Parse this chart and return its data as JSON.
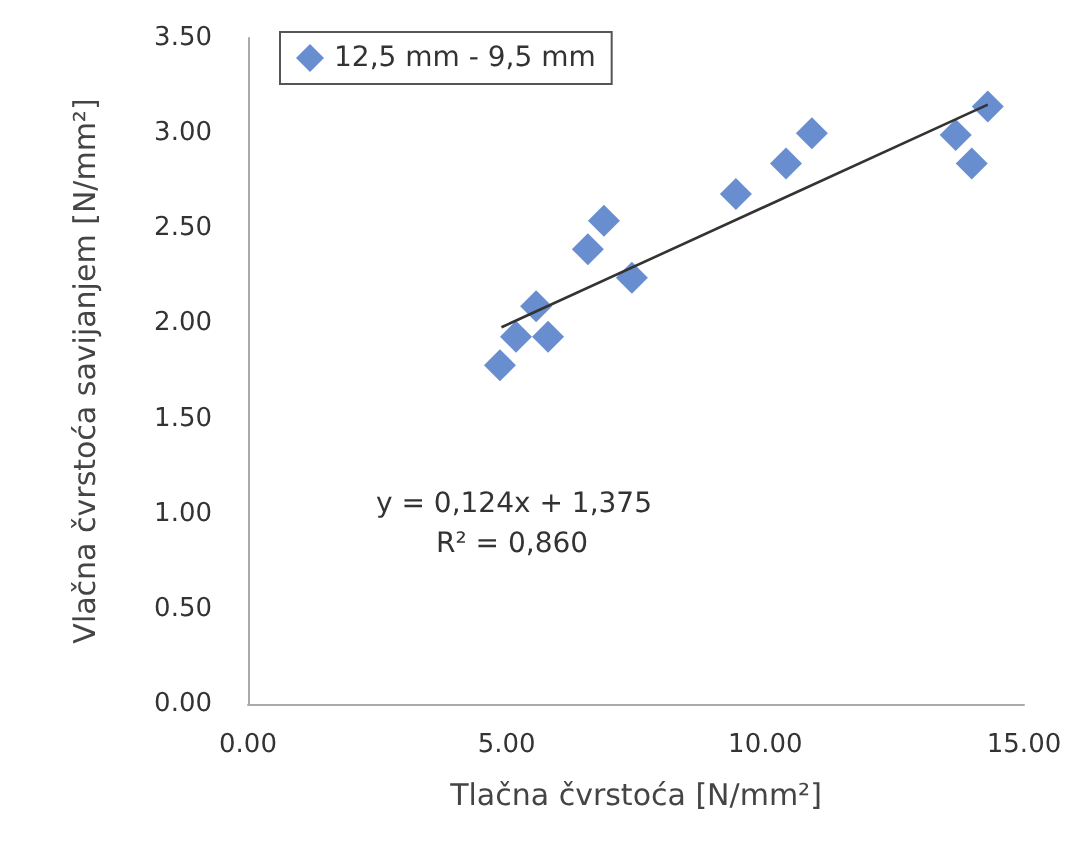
{
  "chart_data": {
    "type": "scatter",
    "xlabel": "Tlačna čvrstoća [N/mm²]",
    "ylabel": "Vlačna čvrstoća savijanjem [N/mm²]",
    "series": [
      {
        "name": "12,5 mm - 9,5 mm",
        "color": "#4472c4",
        "marker": "diamond",
        "x": [
          4.87,
          5.18,
          5.57,
          5.8,
          6.57,
          6.88,
          7.42,
          9.43,
          10.4,
          10.9,
          13.68,
          13.99,
          14.3
        ],
        "values": [
          1.78,
          1.93,
          2.09,
          1.93,
          2.39,
          2.54,
          2.24,
          2.68,
          2.84,
          3.0,
          2.99,
          2.84,
          3.14
        ]
      },
      {
        "type": "line",
        "color": "#333333",
        "marker": "none",
        "x": [
          4.9,
          14.3
        ],
        "values": [
          1.98,
          3.15
        ]
      }
    ],
    "annotations": [
      "y = 0,124x + 1,375",
      "R² = 0,860"
    ],
    "xlim": [
      0,
      15
    ],
    "xticks": [
      {
        "value": 0,
        "label": "0.00"
      },
      {
        "value": 5,
        "label": "5.00"
      },
      {
        "value": 10,
        "label": "10.00"
      },
      {
        "value": 15,
        "label": "15.00"
      }
    ],
    "ylim": [
      0,
      3.5
    ],
    "yticks": [
      {
        "value": 0,
        "label": "0.00"
      },
      {
        "value": 0.5,
        "label": "0.50"
      },
      {
        "value": 1,
        "label": "1.00"
      },
      {
        "value": 1.5,
        "label": "1.50"
      },
      {
        "value": 2,
        "label": "2.00"
      },
      {
        "value": 2.5,
        "label": "2.50"
      },
      {
        "value": 3,
        "label": "3.00"
      },
      {
        "value": 3.5,
        "label": "3.50"
      }
    ],
    "grid": false,
    "legend": "top left"
  }
}
